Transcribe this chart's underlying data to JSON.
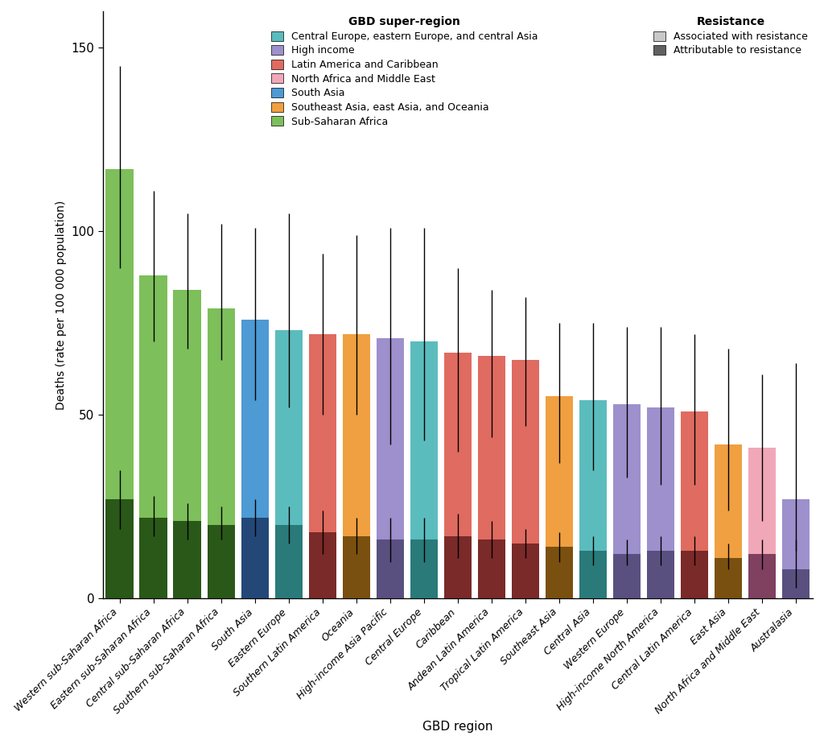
{
  "regions": [
    "Western sub-Saharan Africa",
    "Eastern sub-Saharan Africa",
    "Central sub-Saharan Africa",
    "Southern sub-Saharan Africa",
    "South Asia",
    "Eastern Europe",
    "Southern Latin America",
    "Oceania",
    "High-income Asia Pacific",
    "Central Europe",
    "Caribbean",
    "Andean Latin America",
    "Tropical Latin America",
    "Southeast Asia",
    "Central Asia",
    "Western Europe",
    "High-income North America",
    "Central Latin America",
    "East Asia",
    "North Africa and Middle East",
    "Australasia"
  ],
  "associated_values": [
    117,
    88,
    84,
    79,
    76,
    73,
    72,
    72,
    71,
    70,
    67,
    66,
    65,
    55,
    54,
    53,
    52,
    51,
    42,
    41,
    27
  ],
  "attributable_values": [
    27,
    22,
    21,
    20,
    22,
    20,
    18,
    17,
    16,
    16,
    17,
    16,
    15,
    14,
    13,
    12,
    13,
    13,
    11,
    12,
    8
  ],
  "associated_err_lo": [
    27,
    18,
    16,
    14,
    22,
    21,
    22,
    22,
    29,
    27,
    27,
    22,
    18,
    18,
    19,
    20,
    21,
    20,
    18,
    20,
    14
  ],
  "associated_err_hi": [
    28,
    23,
    21,
    23,
    25,
    32,
    22,
    27,
    30,
    31,
    23,
    18,
    17,
    20,
    21,
    21,
    22,
    21,
    26,
    20,
    37
  ],
  "attributable_err_lo": [
    8,
    5,
    5,
    4,
    5,
    5,
    6,
    5,
    6,
    6,
    6,
    5,
    4,
    4,
    4,
    3,
    4,
    4,
    3,
    4,
    5
  ],
  "attributable_err_hi": [
    8,
    6,
    5,
    5,
    5,
    5,
    6,
    5,
    6,
    6,
    6,
    5,
    4,
    4,
    4,
    4,
    4,
    4,
    4,
    4,
    8
  ],
  "super_regions": [
    "Sub-Saharan Africa",
    "Sub-Saharan Africa",
    "Sub-Saharan Africa",
    "Sub-Saharan Africa",
    "South Asia",
    "Central Europe, eastern Europe, and central Asia",
    "Latin America and Caribbean",
    "Southeast Asia, east Asia, and Oceania",
    "High income",
    "Central Europe, eastern Europe, and central Asia",
    "Latin America and Caribbean",
    "Latin America and Caribbean",
    "Latin America and Caribbean",
    "Southeast Asia, east Asia, and Oceania",
    "Central Europe, eastern Europe, and central Asia",
    "High income",
    "High income",
    "Latin America and Caribbean",
    "Southeast Asia, east Asia, and Oceania",
    "North Africa and Middle East",
    "High income"
  ],
  "super_region_colors": {
    "Central Europe, eastern Europe, and central Asia": "#5bbcbe",
    "High income": "#9d90cc",
    "Latin America and Caribbean": "#e06b60",
    "North Africa and Middle East": "#f0a8b8",
    "South Asia": "#4d9ad4",
    "Southeast Asia, east Asia, and Oceania": "#f0a040",
    "Sub-Saharan Africa": "#7dbf5a"
  },
  "attributable_colors": {
    "Central Europe, eastern Europe, and central Asia": "#2a7a7a",
    "High income": "#5a5080",
    "Latin America and Caribbean": "#7a2a28",
    "North Africa and Middle East": "#804060",
    "South Asia": "#234878",
    "Southeast Asia, east Asia, and Oceania": "#7a5010",
    "Sub-Saharan Africa": "#2a5818"
  },
  "xlabel": "GBD region",
  "ylabel": "Deaths (rate per 100 000 population)",
  "ylim": [
    0,
    160
  ],
  "yticks": [
    0,
    50,
    100,
    150
  ],
  "legend_super_regions": [
    "Central Europe, eastern Europe, and central Asia",
    "High income",
    "Latin America and Caribbean",
    "North Africa and Middle East",
    "South Asia",
    "Southeast Asia, east Asia, and Oceania",
    "Sub-Saharan Africa"
  ],
  "resistance_assoc_color": "#c8c8c8",
  "resistance_attr_color": "#606060",
  "background_color": "#ffffff"
}
